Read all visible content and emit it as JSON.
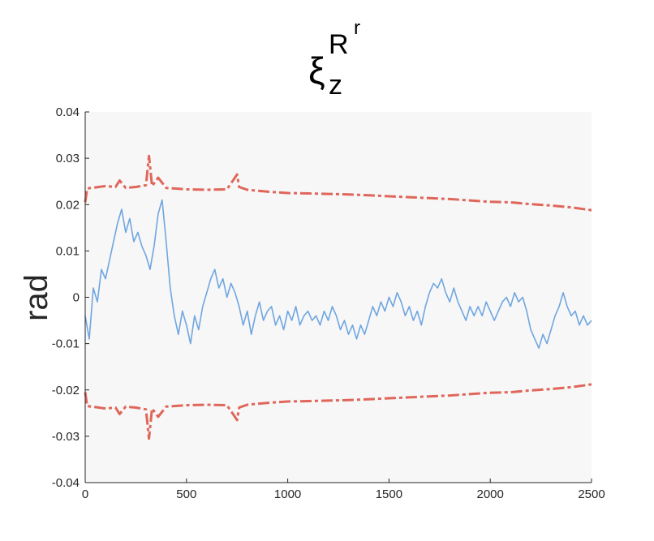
{
  "chart_data": {
    "type": "line",
    "title": {
      "base": "ξ",
      "subscript": "z",
      "superscript": "R",
      "superscript_sup": "r"
    },
    "xlabel": "",
    "ylabel": "rad",
    "xlim": [
      0,
      2500
    ],
    "ylim": [
      -0.04,
      0.04
    ],
    "xticks": [
      {
        "value": 0,
        "label": "0"
      },
      {
        "value": 500,
        "label": "500"
      },
      {
        "value": 1000,
        "label": "1000"
      },
      {
        "value": 1500,
        "label": "1500"
      },
      {
        "value": 2000,
        "label": "2000"
      },
      {
        "value": 2500,
        "label": "2500"
      }
    ],
    "yticks": [
      {
        "value": -0.04,
        "label": "-0.04"
      },
      {
        "value": -0.03,
        "label": "-0.03"
      },
      {
        "value": -0.02,
        "label": "-0.02"
      },
      {
        "value": -0.01,
        "label": "-0.01"
      },
      {
        "value": 0,
        "label": "0"
      },
      {
        "value": 0.01,
        "label": "0.01"
      },
      {
        "value": 0.02,
        "label": "0.02"
      },
      {
        "value": 0.03,
        "label": "0.03"
      },
      {
        "value": 0.04,
        "label": "0.04"
      }
    ],
    "grid": false,
    "legend": "none",
    "background": "#f7f7f7",
    "series": [
      {
        "role": "signal",
        "color": "#6fa6e0",
        "style": "solid",
        "points": [
          [
            0,
            -0.004
          ],
          [
            20,
            -0.009
          ],
          [
            40,
            0.002
          ],
          [
            60,
            -0.001
          ],
          [
            80,
            0.006
          ],
          [
            100,
            0.004
          ],
          [
            120,
            0.008
          ],
          [
            140,
            0.012
          ],
          [
            160,
            0.016
          ],
          [
            180,
            0.019
          ],
          [
            200,
            0.014
          ],
          [
            220,
            0.017
          ],
          [
            240,
            0.012
          ],
          [
            260,
            0.014
          ],
          [
            280,
            0.011
          ],
          [
            300,
            0.009
          ],
          [
            320,
            0.006
          ],
          [
            340,
            0.011
          ],
          [
            360,
            0.018
          ],
          [
            380,
            0.021
          ],
          [
            400,
            0.012
          ],
          [
            420,
            0.002
          ],
          [
            440,
            -0.004
          ],
          [
            460,
            -0.008
          ],
          [
            480,
            -0.003
          ],
          [
            500,
            -0.006
          ],
          [
            520,
            -0.01
          ],
          [
            540,
            -0.004
          ],
          [
            560,
            -0.007
          ],
          [
            580,
            -0.002
          ],
          [
            600,
            0.001
          ],
          [
            620,
            0.004
          ],
          [
            640,
            0.006
          ],
          [
            660,
            0.002
          ],
          [
            680,
            0.004
          ],
          [
            700,
            0.0
          ],
          [
            720,
            0.003
          ],
          [
            740,
            0.001
          ],
          [
            760,
            -0.002
          ],
          [
            780,
            -0.006
          ],
          [
            800,
            -0.003
          ],
          [
            820,
            -0.008
          ],
          [
            840,
            -0.004
          ],
          [
            860,
            -0.001
          ],
          [
            880,
            -0.005
          ],
          [
            900,
            -0.003
          ],
          [
            920,
            -0.002
          ],
          [
            940,
            -0.006
          ],
          [
            960,
            -0.004
          ],
          [
            980,
            -0.007
          ],
          [
            1000,
            -0.003
          ],
          [
            1020,
            -0.005
          ],
          [
            1040,
            -0.002
          ],
          [
            1060,
            -0.006
          ],
          [
            1080,
            -0.004
          ],
          [
            1100,
            -0.003
          ],
          [
            1120,
            -0.005
          ],
          [
            1140,
            -0.004
          ],
          [
            1160,
            -0.006
          ],
          [
            1180,
            -0.003
          ],
          [
            1200,
            -0.005
          ],
          [
            1220,
            -0.002
          ],
          [
            1240,
            -0.004
          ],
          [
            1260,
            -0.007
          ],
          [
            1280,
            -0.005
          ],
          [
            1300,
            -0.008
          ],
          [
            1320,
            -0.006
          ],
          [
            1340,
            -0.009
          ],
          [
            1360,
            -0.006
          ],
          [
            1380,
            -0.008
          ],
          [
            1400,
            -0.005
          ],
          [
            1420,
            -0.002
          ],
          [
            1440,
            -0.004
          ],
          [
            1460,
            -0.001
          ],
          [
            1480,
            -0.003
          ],
          [
            1500,
            0.0
          ],
          [
            1520,
            -0.002
          ],
          [
            1540,
            0.001
          ],
          [
            1560,
            -0.001
          ],
          [
            1580,
            -0.004
          ],
          [
            1600,
            -0.002
          ],
          [
            1620,
            -0.005
          ],
          [
            1640,
            -0.003
          ],
          [
            1660,
            -0.006
          ],
          [
            1680,
            -0.002
          ],
          [
            1700,
            0.001
          ],
          [
            1720,
            0.003
          ],
          [
            1740,
            0.002
          ],
          [
            1760,
            0.004
          ],
          [
            1780,
            0.001
          ],
          [
            1800,
            -0.001
          ],
          [
            1820,
            0.002
          ],
          [
            1840,
            -0.001
          ],
          [
            1860,
            -0.003
          ],
          [
            1880,
            -0.005
          ],
          [
            1900,
            -0.002
          ],
          [
            1920,
            -0.004
          ],
          [
            1940,
            -0.002
          ],
          [
            1960,
            -0.004
          ],
          [
            1980,
            -0.001
          ],
          [
            2000,
            -0.003
          ],
          [
            2020,
            -0.005
          ],
          [
            2040,
            -0.003
          ],
          [
            2060,
            -0.001
          ],
          [
            2080,
            0.0
          ],
          [
            2100,
            -0.002
          ],
          [
            2120,
            0.001
          ],
          [
            2140,
            -0.001
          ],
          [
            2160,
            0.0
          ],
          [
            2180,
            -0.003
          ],
          [
            2200,
            -0.007
          ],
          [
            2220,
            -0.009
          ],
          [
            2240,
            -0.011
          ],
          [
            2260,
            -0.008
          ],
          [
            2280,
            -0.01
          ],
          [
            2300,
            -0.007
          ],
          [
            2320,
            -0.004
          ],
          [
            2340,
            -0.002
          ],
          [
            2360,
            0.001
          ],
          [
            2380,
            -0.002
          ],
          [
            2400,
            -0.004
          ],
          [
            2420,
            -0.003
          ],
          [
            2440,
            -0.006
          ],
          [
            2460,
            -0.004
          ],
          [
            2480,
            -0.006
          ],
          [
            2500,
            -0.005
          ]
        ]
      },
      {
        "role": "upper-bound",
        "color": "#e0665a",
        "style": "dashed",
        "points": [
          [
            0,
            0.0205
          ],
          [
            10,
            0.0235
          ],
          [
            50,
            0.0237
          ],
          [
            100,
            0.024
          ],
          [
            150,
            0.0238
          ],
          [
            170,
            0.0252
          ],
          [
            200,
            0.0236
          ],
          [
            250,
            0.0238
          ],
          [
            300,
            0.0242
          ],
          [
            315,
            0.0305
          ],
          [
            330,
            0.024
          ],
          [
            360,
            0.0258
          ],
          [
            400,
            0.0236
          ],
          [
            500,
            0.0233
          ],
          [
            600,
            0.0232
          ],
          [
            700,
            0.0233
          ],
          [
            750,
            0.0265
          ],
          [
            760,
            0.0238
          ],
          [
            800,
            0.0232
          ],
          [
            900,
            0.0228
          ],
          [
            1000,
            0.0225
          ],
          [
            1100,
            0.0224
          ],
          [
            1200,
            0.0223
          ],
          [
            1300,
            0.0222
          ],
          [
            1400,
            0.022
          ],
          [
            1500,
            0.0218
          ],
          [
            1600,
            0.0216
          ],
          [
            1700,
            0.0214
          ],
          [
            1800,
            0.0212
          ],
          [
            1900,
            0.0209
          ],
          [
            2000,
            0.0206
          ],
          [
            2100,
            0.0205
          ],
          [
            2200,
            0.0201
          ],
          [
            2300,
            0.0198
          ],
          [
            2400,
            0.0194
          ],
          [
            2500,
            0.0188
          ]
        ]
      },
      {
        "role": "lower-bound",
        "color": "#e0665a",
        "style": "dashed",
        "points": [
          [
            0,
            -0.0205
          ],
          [
            10,
            -0.0235
          ],
          [
            50,
            -0.0237
          ],
          [
            100,
            -0.024
          ],
          [
            150,
            -0.0238
          ],
          [
            170,
            -0.0252
          ],
          [
            200,
            -0.0236
          ],
          [
            250,
            -0.0238
          ],
          [
            300,
            -0.0242
          ],
          [
            315,
            -0.0305
          ],
          [
            330,
            -0.024
          ],
          [
            360,
            -0.0258
          ],
          [
            400,
            -0.0236
          ],
          [
            500,
            -0.0233
          ],
          [
            600,
            -0.0232
          ],
          [
            700,
            -0.0233
          ],
          [
            750,
            -0.0265
          ],
          [
            760,
            -0.0238
          ],
          [
            800,
            -0.0232
          ],
          [
            900,
            -0.0228
          ],
          [
            1000,
            -0.0225
          ],
          [
            1100,
            -0.0224
          ],
          [
            1200,
            -0.0223
          ],
          [
            1300,
            -0.0222
          ],
          [
            1400,
            -0.022
          ],
          [
            1500,
            -0.0218
          ],
          [
            1600,
            -0.0216
          ],
          [
            1700,
            -0.0214
          ],
          [
            1800,
            -0.0212
          ],
          [
            1900,
            -0.0209
          ],
          [
            2000,
            -0.0206
          ],
          [
            2100,
            -0.0205
          ],
          [
            2200,
            -0.0201
          ],
          [
            2300,
            -0.0198
          ],
          [
            2400,
            -0.0194
          ],
          [
            2500,
            -0.0188
          ]
        ]
      }
    ]
  }
}
